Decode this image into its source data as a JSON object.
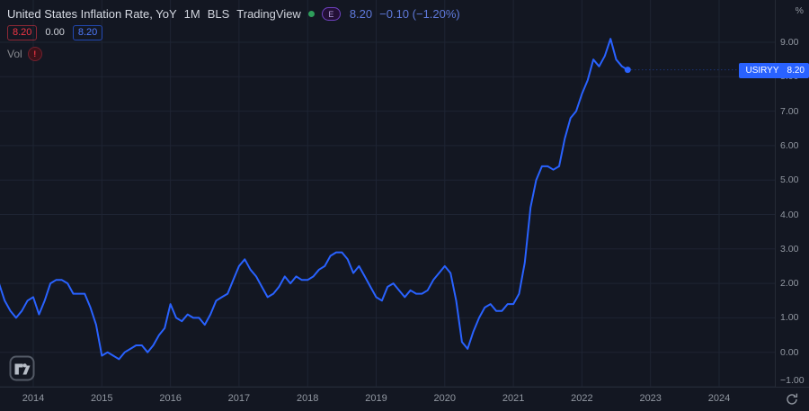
{
  "colors": {
    "background": "#131722",
    "grid": "#1e2433",
    "line": "#2962ff",
    "axis_text": "#9298a2",
    "title_text": "#d7dbe4",
    "value_text": "#5f7adb",
    "red": "#f23645",
    "blue": "#2962ff",
    "green_dot": "#2e9e5b",
    "purple": "#6f42c1"
  },
  "header": {
    "title": "United States Inflation Rate, YoY",
    "interval": "1M",
    "source": "BLS",
    "provider": "TradingView",
    "data_flag": "E",
    "last_price": "8.20",
    "change": "−0.10 (−1.20%)",
    "badges": [
      {
        "label": "8.20",
        "style": "red"
      },
      {
        "label": "0.00",
        "style": "plain"
      },
      {
        "label": "8.20",
        "style": "blue"
      }
    ],
    "volume_label": "Vol",
    "volume_warning": "!"
  },
  "price_axis": {
    "unit": "%",
    "ticks": [
      {
        "v": 9,
        "label": "9.00"
      },
      {
        "v": 8,
        "label": "8.00"
      },
      {
        "v": 7,
        "label": "7.00"
      },
      {
        "v": 6,
        "label": "6.00"
      },
      {
        "v": 5,
        "label": "5.00"
      },
      {
        "v": 4,
        "label": "4.00"
      },
      {
        "v": 3,
        "label": "3.00"
      },
      {
        "v": 2,
        "label": "2.00"
      },
      {
        "v": 1,
        "label": "1.00"
      },
      {
        "v": 0,
        "label": "0.00"
      },
      {
        "v": -1,
        "label": "−1.00"
      }
    ],
    "price_label": {
      "symbol": "USIRYY",
      "value": "8.20"
    }
  },
  "time_axis": {
    "ticks": [
      {
        "year": 2014,
        "label": "2014"
      },
      {
        "year": 2015,
        "label": "2015"
      },
      {
        "year": 2016,
        "label": "2016"
      },
      {
        "year": 2017,
        "label": "2017"
      },
      {
        "year": 2018,
        "label": "2018"
      },
      {
        "year": 2019,
        "label": "2019"
      },
      {
        "year": 2020,
        "label": "2020"
      },
      {
        "year": 2021,
        "label": "2021"
      },
      {
        "year": 2022,
        "label": "2022"
      },
      {
        "year": 2023,
        "label": "2023"
      },
      {
        "year": 2024,
        "label": "2024"
      }
    ]
  },
  "chart_data": {
    "type": "line",
    "title": "United States Inflation Rate, YoY",
    "series_name": "USIRYY",
    "ylabel": "%",
    "frequency": "monthly",
    "start": "2013-07",
    "end": "2022-09",
    "line_color": "#2962ff",
    "ylim": [
      -1,
      9.6
    ],
    "grid": true,
    "y_grid": [
      -1,
      0,
      1,
      2,
      3,
      4,
      5,
      6,
      7,
      8,
      9
    ],
    "x_ticks_years": [
      2014,
      2015,
      2016,
      2017,
      2018,
      2019,
      2020,
      2021,
      2022,
      2023,
      2024
    ],
    "last_value": 8.2,
    "values": [
      2.0,
      1.5,
      1.2,
      1.0,
      1.2,
      1.5,
      1.6,
      1.1,
      1.5,
      2.0,
      2.1,
      2.1,
      2.0,
      1.7,
      1.7,
      1.7,
      1.3,
      0.8,
      -0.1,
      0.0,
      -0.1,
      -0.2,
      0.0,
      0.1,
      0.2,
      0.2,
      0.0,
      0.2,
      0.5,
      0.7,
      1.4,
      1.0,
      0.9,
      1.1,
      1.0,
      1.0,
      0.8,
      1.1,
      1.5,
      1.6,
      1.7,
      2.1,
      2.5,
      2.7,
      2.4,
      2.2,
      1.9,
      1.6,
      1.7,
      1.9,
      2.2,
      2.0,
      2.2,
      2.1,
      2.1,
      2.2,
      2.4,
      2.5,
      2.8,
      2.9,
      2.9,
      2.7,
      2.3,
      2.5,
      2.2,
      1.9,
      1.6,
      1.5,
      1.9,
      2.0,
      1.8,
      1.6,
      1.8,
      1.7,
      1.7,
      1.8,
      2.1,
      2.3,
      2.5,
      2.3,
      1.5,
      0.3,
      0.1,
      0.6,
      1.0,
      1.3,
      1.4,
      1.2,
      1.2,
      1.4,
      1.4,
      1.7,
      2.6,
      4.2,
      5.0,
      5.4,
      5.4,
      5.3,
      5.4,
      6.2,
      6.8,
      7.0,
      7.5,
      7.9,
      8.5,
      8.3,
      8.6,
      9.1,
      8.5,
      8.3,
      8.2
    ]
  }
}
